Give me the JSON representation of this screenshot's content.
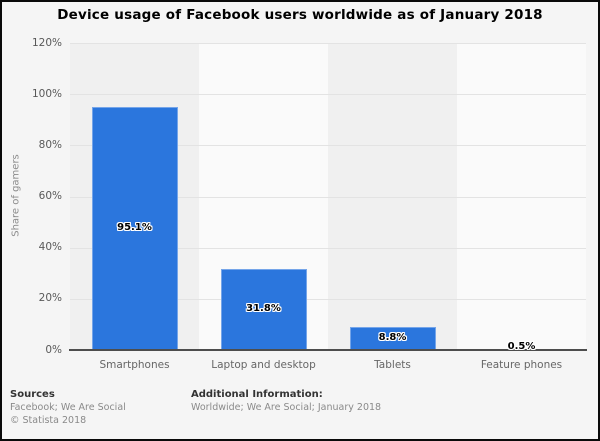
{
  "title": "Device usage of Facebook users worldwide as of January 2018",
  "chart_data": {
    "type": "bar",
    "title": "Device usage of Facebook users worldwide as of January 2018",
    "categories": [
      "Smartphones",
      "Laptop and desktop",
      "Tablets",
      "Feature phones"
    ],
    "values": [
      95.1,
      31.8,
      8.8,
      0.5
    ],
    "value_labels": [
      "95.1%",
      "31.8%",
      "8.8%",
      "0.5%"
    ],
    "xlabel": "",
    "ylabel": "Share of gamers",
    "ylim": [
      0,
      120
    ],
    "ytick_step": 20,
    "ytick_labels": [
      "0%",
      "20%",
      "40%",
      "60%",
      "80%",
      "100%",
      "120%"
    ],
    "grid": true,
    "legend": "none",
    "colors": {
      "bar": "#2b76dd",
      "band_odd": "#f0f0f0",
      "band_even": "#fafafa",
      "gridline": "#e3e3e3",
      "axis_line": "#4d4d4d",
      "background": "#f5f5f5"
    }
  },
  "footer": {
    "sources_heading": "Sources",
    "sources_line": "Facebook; We Are Social",
    "copyright": "© Statista 2018",
    "additional_heading": "Additional Information:",
    "additional_line": "Worldwide; We Are Social; January 2018"
  }
}
